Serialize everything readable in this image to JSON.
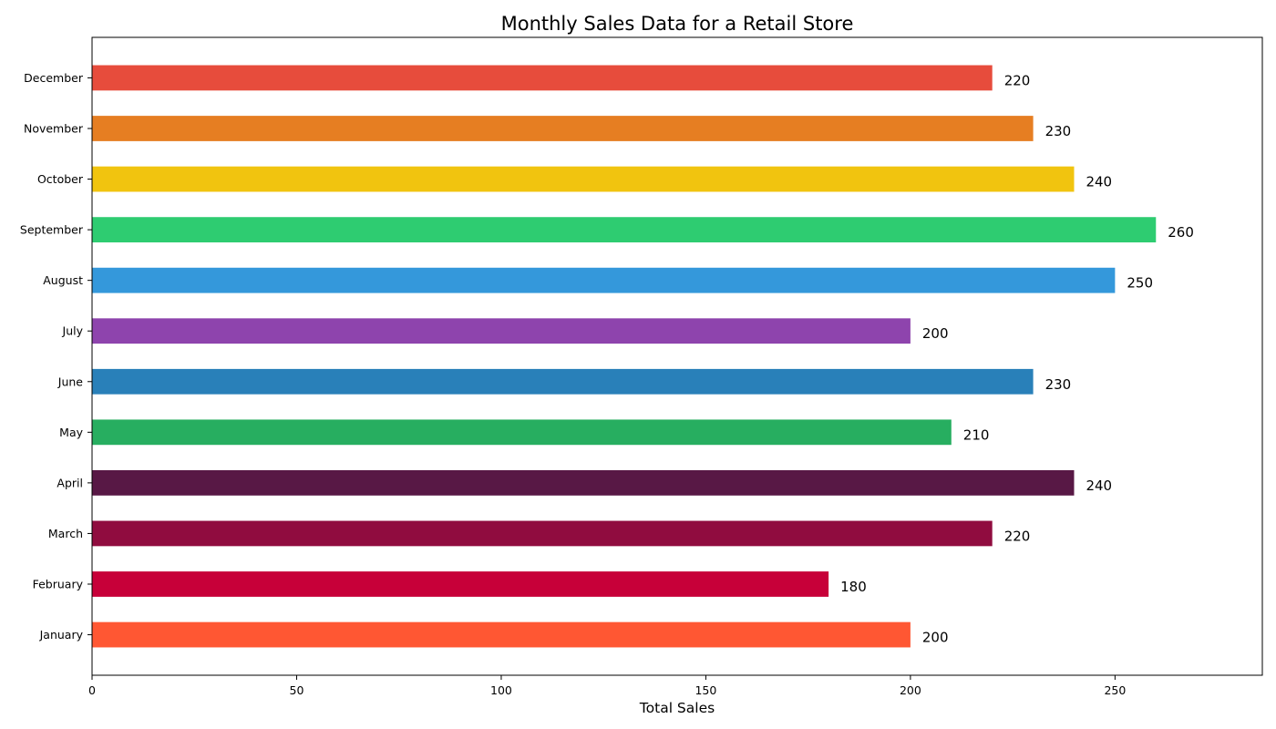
{
  "chart_data": {
    "type": "bar",
    "orientation": "horizontal",
    "title": "Monthly Sales Data for a Retail Store",
    "xlabel": "Total Sales",
    "ylabel": "",
    "categories": [
      "January",
      "February",
      "March",
      "April",
      "May",
      "June",
      "July",
      "August",
      "September",
      "October",
      "November",
      "December"
    ],
    "values": [
      200,
      180,
      220,
      240,
      210,
      230,
      200,
      250,
      260,
      240,
      230,
      220
    ],
    "value_labels": [
      "200",
      "180",
      "220",
      "240",
      "210",
      "230",
      "200",
      "250",
      "260",
      "240",
      "230",
      "220"
    ],
    "colors": [
      "#FF5733",
      "#C70039",
      "#900C3F",
      "#581845",
      "#27AE60",
      "#2980B9",
      "#8E44AD",
      "#3498DB",
      "#2ECC71",
      "#F1C40F",
      "#E67E22",
      "#E74C3C"
    ],
    "xlim": [
      0,
      286
    ],
    "xticks": [
      0,
      50,
      100,
      150,
      200,
      250
    ],
    "xtick_labels": [
      "0",
      "50",
      "100",
      "150",
      "200",
      "250"
    ],
    "grid": false,
    "legend": "none"
  }
}
